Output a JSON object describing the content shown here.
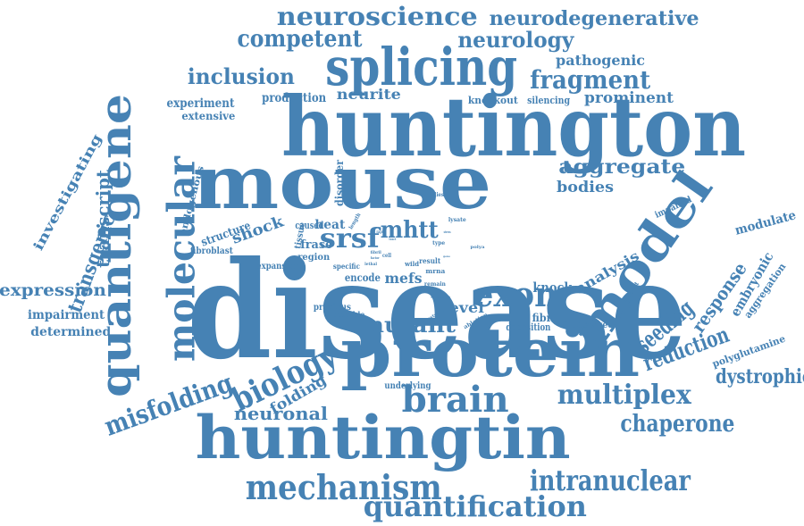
{
  "color": "#4682b4",
  "words": [
    {
      "text": "disease"
    },
    {
      "text": "huntington"
    },
    {
      "text": "mouse"
    },
    {
      "text": "protein"
    },
    {
      "text": "huntingtin"
    },
    {
      "text": "splicing"
    },
    {
      "text": "model"
    },
    {
      "text": "quantigene"
    },
    {
      "text": "molecular"
    },
    {
      "text": "neuroscience"
    },
    {
      "text": "neurodegenerative"
    },
    {
      "text": "competent"
    },
    {
      "text": "neurology"
    },
    {
      "text": "fragment"
    },
    {
      "text": "pathogenic"
    },
    {
      "text": "inclusion"
    },
    {
      "text": "production"
    },
    {
      "text": "neurite"
    },
    {
      "text": "knockout"
    },
    {
      "text": "silencing"
    },
    {
      "text": "prominent"
    },
    {
      "text": "experiment"
    },
    {
      "text": "extensive"
    },
    {
      "text": "aggregate"
    },
    {
      "text": "bodies"
    },
    {
      "text": "investigating"
    },
    {
      "text": "transcript"
    },
    {
      "text": "transgenic"
    },
    {
      "text": "expression"
    },
    {
      "text": "impairment"
    },
    {
      "text": "determined"
    },
    {
      "text": "biology"
    },
    {
      "text": "misfolding"
    },
    {
      "text": "folding"
    },
    {
      "text": "neuronal"
    },
    {
      "text": "brain"
    },
    {
      "text": "multiplex"
    },
    {
      "text": "chaperone"
    },
    {
      "text": "dystrophic"
    },
    {
      "text": "intranuclear"
    },
    {
      "text": "mechanism"
    },
    {
      "text": "quantification"
    },
    {
      "text": "exon"
    },
    {
      "text": "mutant"
    },
    {
      "text": "level"
    },
    {
      "text": "seeding"
    },
    {
      "text": "reduction"
    },
    {
      "text": "response"
    },
    {
      "text": "embryonic"
    },
    {
      "text": "aggregation"
    },
    {
      "text": "modulate"
    },
    {
      "text": "polyglutamine"
    },
    {
      "text": "knock"
    },
    {
      "text": "analysis"
    },
    {
      "text": "fibrillar"
    },
    {
      "text": "deposition"
    },
    {
      "text": "observed"
    },
    {
      "text": "srsf"
    },
    {
      "text": "mhtt"
    },
    {
      "text": "shock"
    },
    {
      "text": "heat"
    },
    {
      "text": "caused"
    },
    {
      "text": "frase"
    },
    {
      "text": "structure"
    },
    {
      "text": "fibroblast"
    },
    {
      "text": "endogenous"
    },
    {
      "text": "disorder"
    },
    {
      "text": "mefs"
    },
    {
      "text": "encode"
    },
    {
      "text": "expansion"
    },
    {
      "text": "region"
    },
    {
      "text": "tissue"
    },
    {
      "text": "previous"
    },
    {
      "text": "possible"
    },
    {
      "text": "underlying"
    },
    {
      "text": "studies"
    },
    {
      "text": "impaired"
    },
    {
      "text": "patient"
    },
    {
      "text": "specific"
    },
    {
      "text": "lethal"
    },
    {
      "text": "result"
    },
    {
      "text": "wild"
    },
    {
      "text": "fibril"
    },
    {
      "text": "factor"
    },
    {
      "text": "type"
    },
    {
      "text": "mrna"
    },
    {
      "text": "remain"
    },
    {
      "text": "splice"
    },
    {
      "text": "ablation"
    },
    {
      "text": "extract"
    },
    {
      "text": "lysate"
    },
    {
      "text": "cell"
    },
    {
      "text": "rapid"
    },
    {
      "text": "polya"
    },
    {
      "text": "length"
    },
    {
      "text": "tract"
    },
    {
      "text": "stress"
    },
    {
      "text": "gene"
    }
  ]
}
